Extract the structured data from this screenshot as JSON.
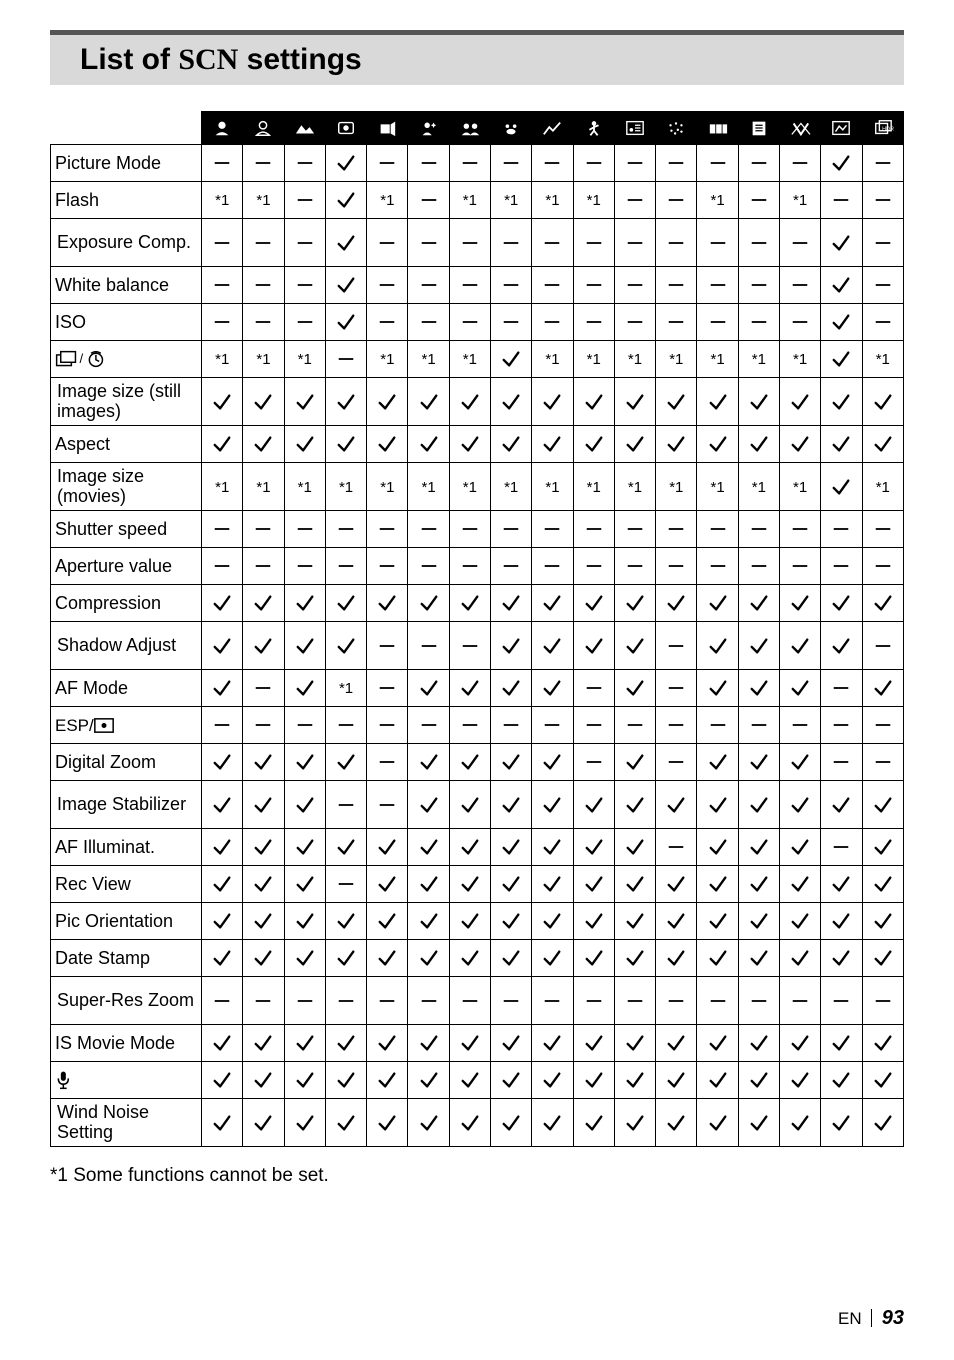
{
  "title_prefix": "List of ",
  "title_scn": "SCN",
  "title_suffix": " settings",
  "colCount": 17,
  "headerIcons": [
    "portrait1",
    "portrait2",
    "landscape",
    "interval",
    "handheld",
    "night",
    "night-portrait",
    "pet",
    "fireworks",
    "sport",
    "beach",
    "snow",
    "panorama",
    "document",
    "sunset",
    "macro",
    "hdr"
  ],
  "rows": [
    {
      "label": "Picture Mode",
      "cells": [
        "d",
        "d",
        "d",
        "c",
        "d",
        "d",
        "d",
        "d",
        "d",
        "d",
        "d",
        "d",
        "d",
        "d",
        "d",
        "c",
        "d"
      ]
    },
    {
      "label": "Flash",
      "cells": [
        "s",
        "s",
        "d",
        "c",
        "s",
        "d",
        "s",
        "s",
        "s",
        "s",
        "d",
        "d",
        "s",
        "d",
        "s",
        "d",
        "d"
      ]
    },
    {
      "label": "Exposure Comp.",
      "two": true,
      "cells": [
        "d",
        "d",
        "d",
        "c",
        "d",
        "d",
        "d",
        "d",
        "d",
        "d",
        "d",
        "d",
        "d",
        "d",
        "d",
        "c",
        "d"
      ]
    },
    {
      "label": "White balance",
      "cells": [
        "d",
        "d",
        "d",
        "c",
        "d",
        "d",
        "d",
        "d",
        "d",
        "d",
        "d",
        "d",
        "d",
        "d",
        "d",
        "c",
        "d"
      ]
    },
    {
      "label": "ISO",
      "cells": [
        "d",
        "d",
        "d",
        "c",
        "d",
        "d",
        "d",
        "d",
        "d",
        "d",
        "d",
        "d",
        "d",
        "d",
        "d",
        "c",
        "d"
      ]
    },
    {
      "label_svg": "drive",
      "cells": [
        "s",
        "s",
        "s",
        "d",
        "s",
        "s",
        "s",
        "c",
        "s",
        "s",
        "s",
        "s",
        "s",
        "s",
        "s",
        "c",
        "s"
      ]
    },
    {
      "label": "Image size (still images)",
      "two": true,
      "cells": [
        "c",
        "c",
        "c",
        "c",
        "c",
        "c",
        "c",
        "c",
        "c",
        "c",
        "c",
        "c",
        "c",
        "c",
        "c",
        "c",
        "c"
      ]
    },
    {
      "label": "Aspect",
      "cells": [
        "c",
        "c",
        "c",
        "c",
        "c",
        "c",
        "c",
        "c",
        "c",
        "c",
        "c",
        "c",
        "c",
        "c",
        "c",
        "c",
        "c"
      ]
    },
    {
      "label": "Image size (movies)",
      "two": true,
      "cells": [
        "s",
        "s",
        "s",
        "s",
        "s",
        "s",
        "s",
        "s",
        "s",
        "s",
        "s",
        "s",
        "s",
        "s",
        "s",
        "c",
        "s"
      ]
    },
    {
      "label": "Shutter speed",
      "cells": [
        "d",
        "d",
        "d",
        "d",
        "d",
        "d",
        "d",
        "d",
        "d",
        "d",
        "d",
        "d",
        "d",
        "d",
        "d",
        "d",
        "d"
      ]
    },
    {
      "label": "Aperture value",
      "cells": [
        "d",
        "d",
        "d",
        "d",
        "d",
        "d",
        "d",
        "d",
        "d",
        "d",
        "d",
        "d",
        "d",
        "d",
        "d",
        "d",
        "d"
      ]
    },
    {
      "label": "Compression",
      "cells": [
        "c",
        "c",
        "c",
        "c",
        "c",
        "c",
        "c",
        "c",
        "c",
        "c",
        "c",
        "c",
        "c",
        "c",
        "c",
        "c",
        "c"
      ]
    },
    {
      "label": "Shadow Adjust",
      "two": true,
      "cells": [
        "c",
        "c",
        "c",
        "c",
        "d",
        "d",
        "d",
        "c",
        "c",
        "c",
        "c",
        "d",
        "c",
        "c",
        "c",
        "c",
        "d"
      ]
    },
    {
      "label": "AF Mode",
      "cells": [
        "c",
        "d",
        "c",
        "s",
        "d",
        "c",
        "c",
        "c",
        "c",
        "d",
        "c",
        "d",
        "c",
        "c",
        "c",
        "d",
        "c"
      ]
    },
    {
      "label_svg": "esp",
      "cells": [
        "d",
        "d",
        "d",
        "d",
        "d",
        "d",
        "d",
        "d",
        "d",
        "d",
        "d",
        "d",
        "d",
        "d",
        "d",
        "d",
        "d"
      ]
    },
    {
      "label": "Digital Zoom",
      "cells": [
        "c",
        "c",
        "c",
        "c",
        "d",
        "c",
        "c",
        "c",
        "c",
        "d",
        "c",
        "d",
        "c",
        "c",
        "c",
        "d",
        "d"
      ]
    },
    {
      "label": "Image Stabilizer",
      "two": true,
      "cells": [
        "c",
        "c",
        "c",
        "d",
        "d",
        "c",
        "c",
        "c",
        "c",
        "c",
        "c",
        "c",
        "c",
        "c",
        "c",
        "c",
        "c"
      ]
    },
    {
      "label": "AF Illuminat.",
      "cells": [
        "c",
        "c",
        "c",
        "c",
        "c",
        "c",
        "c",
        "c",
        "c",
        "c",
        "c",
        "d",
        "c",
        "c",
        "c",
        "d",
        "c"
      ]
    },
    {
      "label": "Rec View",
      "cells": [
        "c",
        "c",
        "c",
        "d",
        "c",
        "c",
        "c",
        "c",
        "c",
        "c",
        "c",
        "c",
        "c",
        "c",
        "c",
        "c",
        "c"
      ]
    },
    {
      "label": "Pic Orientation",
      "cells": [
        "c",
        "c",
        "c",
        "c",
        "c",
        "c",
        "c",
        "c",
        "c",
        "c",
        "c",
        "c",
        "c",
        "c",
        "c",
        "c",
        "c"
      ]
    },
    {
      "label": "Date Stamp",
      "cells": [
        "c",
        "c",
        "c",
        "c",
        "c",
        "c",
        "c",
        "c",
        "c",
        "c",
        "c",
        "c",
        "c",
        "c",
        "c",
        "c",
        "c"
      ]
    },
    {
      "label": "Super-Res Zoom",
      "two": true,
      "cells": [
        "d",
        "d",
        "d",
        "d",
        "d",
        "d",
        "d",
        "d",
        "d",
        "d",
        "d",
        "d",
        "d",
        "d",
        "d",
        "d",
        "d"
      ]
    },
    {
      "label": "IS Movie Mode",
      "cells": [
        "c",
        "c",
        "c",
        "c",
        "c",
        "c",
        "c",
        "c",
        "c",
        "c",
        "c",
        "c",
        "c",
        "c",
        "c",
        "c",
        "c"
      ]
    },
    {
      "label_svg": "mic",
      "cells": [
        "c",
        "c",
        "c",
        "c",
        "c",
        "c",
        "c",
        "c",
        "c",
        "c",
        "c",
        "c",
        "c",
        "c",
        "c",
        "c",
        "c"
      ]
    },
    {
      "label": "Wind Noise Setting",
      "two": true,
      "cells": [
        "c",
        "c",
        "c",
        "c",
        "c",
        "c",
        "c",
        "c",
        "c",
        "c",
        "c",
        "c",
        "c",
        "c",
        "c",
        "c",
        "c"
      ]
    }
  ],
  "footnote": "*1  Some functions cannot be set.",
  "page_en": "EN",
  "page_num": "93",
  "colors": {
    "header_bg": "#000000",
    "header_fg": "#ffffff",
    "title_bg": "#d9d9d9",
    "title_border": "#555555",
    "cell_border": "#000000",
    "text": "#000000"
  }
}
